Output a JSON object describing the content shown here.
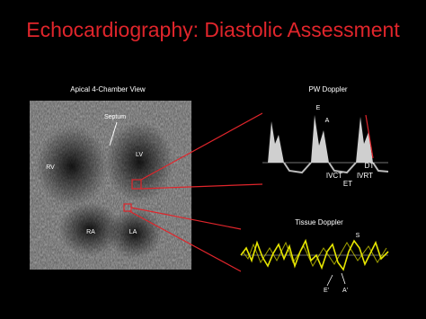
{
  "title": "Echocardiography: Diastolic Assessment",
  "apical": {
    "label": "Apical 4-Chamber View",
    "septum": "Septum",
    "lv": "LV",
    "rv": "RV",
    "ra": "RA",
    "la": "LA"
  },
  "pw_doppler": {
    "label": "PW Doppler",
    "e": "E",
    "a": "A",
    "dt": "DT",
    "ivct": "IVCT",
    "ivrt": "IVRT",
    "et": "ET"
  },
  "tissue_doppler": {
    "label": "Tissue Doppler",
    "s": "S",
    "e_prime": "E'",
    "a_prime": "A'"
  }
}
